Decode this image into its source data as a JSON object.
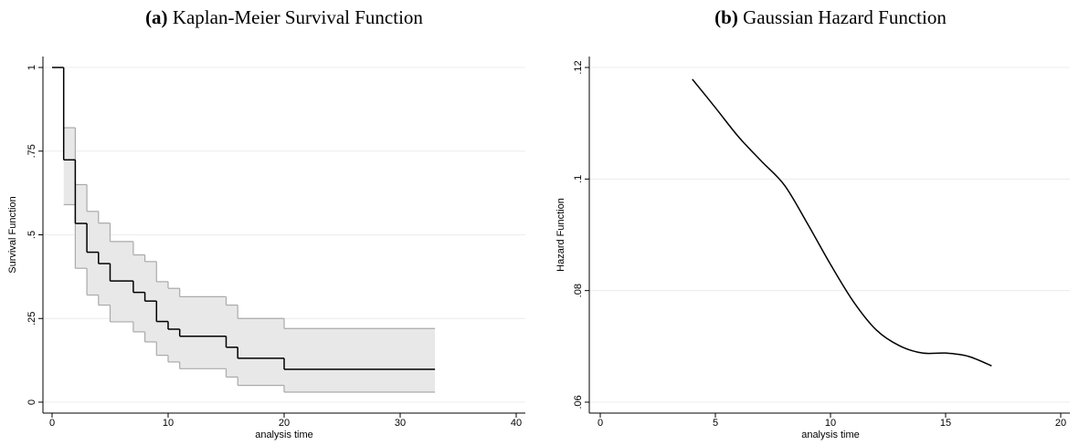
{
  "chart_data": [
    {
      "type": "step",
      "panel_label": "(a)",
      "title": "Kaplan-Meier Survival Function",
      "xlabel": "analysis time",
      "ylabel": "Survival Function",
      "x": [
        0,
        1,
        2,
        3,
        4,
        5,
        7,
        8,
        9,
        10,
        11,
        15,
        16,
        20,
        33
      ],
      "series": [
        {
          "color": "#000000",
          "values": [
            1,
            0.724,
            0.534,
            0.448,
            0.414,
            0.362,
            0.328,
            0.302,
            0.241,
            0.218,
            0.197,
            0.164,
            0.131,
            0.098,
            0.098
          ]
        }
      ],
      "ci_upper": [
        null,
        0.82,
        0.65,
        0.57,
        0.535,
        0.48,
        0.44,
        0.42,
        0.36,
        0.34,
        0.315,
        0.29,
        0.25,
        0.22,
        0.22
      ],
      "ci_lower": [
        null,
        0.59,
        0.4,
        0.32,
        0.29,
        0.24,
        0.21,
        0.18,
        0.14,
        0.12,
        0.1,
        0.075,
        0.05,
        0.03,
        0.03
      ],
      "ci_color": "#aaaaaa",
      "ci_fill": "#e8e8e8",
      "xlim": [
        0,
        40
      ],
      "xticks": [
        0,
        10,
        20,
        30,
        40
      ],
      "ylim": [
        0,
        1
      ],
      "yticks": [
        0,
        {
          "value": 0.25,
          "label": ".25"
        },
        {
          "value": 0.5,
          "label": ".5"
        },
        {
          "value": 0.75,
          "label": ".75"
        },
        1
      ],
      "grid": true
    },
    {
      "type": "line",
      "panel_label": "(b)",
      "title": "Gaussian Hazard Function",
      "xlabel": "analysis time",
      "ylabel": "Hazard Function",
      "x": [
        4,
        5,
        6,
        7,
        8,
        9,
        10,
        11,
        12,
        13,
        14,
        15,
        16,
        17
      ],
      "series": [
        {
          "color": "#000000",
          "values": [
            0.1179,
            0.1128,
            0.1076,
            0.1032,
            0.0989,
            0.092,
            0.0847,
            0.078,
            0.0729,
            0.0701,
            0.0688,
            0.0688,
            0.0682,
            0.0665
          ]
        }
      ],
      "xlim": [
        0,
        20
      ],
      "xticks": [
        0,
        5,
        10,
        15,
        20
      ],
      "ylim": [
        0.06,
        0.12
      ],
      "yticks": [
        {
          "value": 0.06,
          "label": ".06"
        },
        {
          "value": 0.08,
          "label": ".08"
        },
        {
          "value": 0.1,
          "label": ".1"
        },
        {
          "value": 0.12,
          "label": ".12"
        }
      ],
      "grid": true
    }
  ]
}
